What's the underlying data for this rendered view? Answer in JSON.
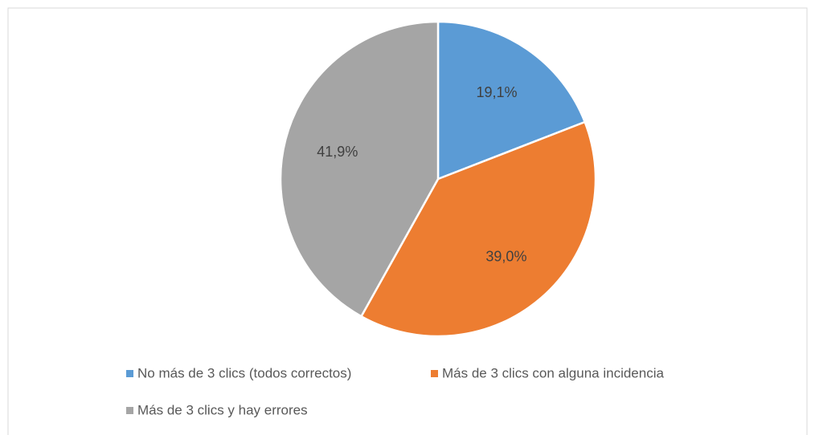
{
  "chart_data": {
    "type": "pie",
    "categories": [
      "No más de 3 clics (todos correctos)",
      "Más de 3 clics con alguna incidencia",
      "Más de 3 clics y hay errores"
    ],
    "values": [
      19.1,
      39.0,
      41.9
    ],
    "value_labels": [
      "19,1%",
      "39,0%",
      "41,9%"
    ],
    "colors": [
      "#5b9bd5",
      "#ed7d31",
      "#a5a5a5"
    ],
    "legend": "bottom"
  }
}
